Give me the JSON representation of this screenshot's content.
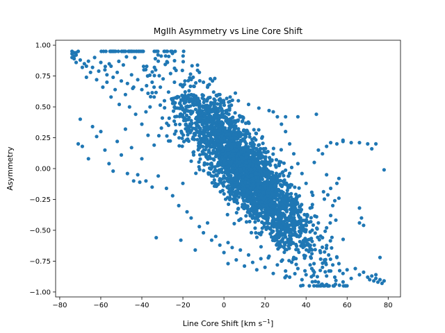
{
  "chart_data": {
    "type": "scatter",
    "title": "MgIIh Asymmetry vs Line Core Shift",
    "xlabel": "Line Core Shift [km s",
    "xlabel_sup": "−1",
    "xlabel_tail": "]",
    "ylabel": "Asymmetry",
    "xlim": [
      -82,
      86
    ],
    "ylim": [
      -1.04,
      1.04
    ],
    "xticks": [
      -80,
      -60,
      -40,
      -20,
      0,
      20,
      40,
      60,
      80
    ],
    "xtick_labels": [
      "−80",
      "−60",
      "−40",
      "−20",
      "0",
      "20",
      "40",
      "60",
      "80"
    ],
    "yticks": [
      -1.0,
      -0.75,
      -0.5,
      -0.25,
      0.0,
      0.25,
      0.5,
      0.75,
      1.0
    ],
    "ytick_labels": [
      "−1.00",
      "−0.75",
      "−0.50",
      "−0.25",
      "0.00",
      "0.25",
      "0.50",
      "0.75",
      "1.00"
    ],
    "grid": false,
    "marker_color": "#1f77b4",
    "series": [
      {
        "values": [
          {
            "x": -74,
            "y": 0.93
          },
          {
            "x": -73,
            "y": 0.94
          },
          {
            "x": -72,
            "y": 0.92
          },
          {
            "x": -73,
            "y": 0.91
          },
          {
            "x": -71,
            "y": 0.95
          },
          {
            "x": -70,
            "y": 0.88
          },
          {
            "x": -68,
            "y": 0.85
          },
          {
            "x": -67,
            "y": 0.83
          },
          {
            "x": -66,
            "y": 0.87
          },
          {
            "x": -64,
            "y": 0.82
          },
          {
            "x": -63,
            "y": 0.9
          },
          {
            "x": -61,
            "y": 0.79
          },
          {
            "x": -60,
            "y": 0.86
          },
          {
            "x": -58,
            "y": 0.8
          },
          {
            "x": -57,
            "y": 0.76
          },
          {
            "x": -55,
            "y": 0.83
          },
          {
            "x": -54,
            "y": 0.74
          },
          {
            "x": -52,
            "y": 0.78
          },
          {
            "x": -50,
            "y": 0.71
          },
          {
            "x": -49,
            "y": 0.84
          },
          {
            "x": -47,
            "y": 0.69
          },
          {
            "x": -45,
            "y": 0.76
          },
          {
            "x": -44,
            "y": 0.66
          },
          {
            "x": -42,
            "y": 0.72
          },
          {
            "x": -40,
            "y": 0.64
          },
          {
            "x": -39,
            "y": 0.8
          },
          {
            "x": -37,
            "y": 0.61
          },
          {
            "x": -35,
            "y": 0.7
          },
          {
            "x": -34,
            "y": 0.58
          },
          {
            "x": -32,
            "y": 0.87
          },
          {
            "x": -31,
            "y": 0.66
          },
          {
            "x": -29,
            "y": 0.55
          },
          {
            "x": -27,
            "y": 0.62
          },
          {
            "x": -26,
            "y": 0.77
          },
          {
            "x": -24,
            "y": 0.5
          },
          {
            "x": -22,
            "y": 0.58
          },
          {
            "x": -21,
            "y": 0.68
          },
          {
            "x": -19,
            "y": 0.71
          },
          {
            "x": -17,
            "y": 0.63
          },
          {
            "x": -15,
            "y": 0.74
          },
          {
            "x": -12,
            "y": 0.78
          },
          {
            "x": -10,
            "y": 0.7
          },
          {
            "x": -8,
            "y": 0.66
          },
          {
            "x": -5,
            "y": 0.62
          },
          {
            "x": -2,
            "y": 0.6
          },
          {
            "x": 3,
            "y": 0.58
          },
          {
            "x": 7,
            "y": 0.55
          },
          {
            "x": 12,
            "y": 0.52
          },
          {
            "x": 17,
            "y": 0.49
          },
          {
            "x": 22,
            "y": 0.47
          },
          {
            "x": 30,
            "y": 0.42
          },
          {
            "x": 45,
            "y": 0.44
          },
          {
            "x": -70,
            "y": 0.4
          },
          {
            "x": -71,
            "y": 0.2
          },
          {
            "x": -69,
            "y": 0.18
          },
          {
            "x": -66,
            "y": 0.08
          },
          {
            "x": -64,
            "y": 0.34
          },
          {
            "x": -62,
            "y": 0.26
          },
          {
            "x": -60,
            "y": 0.3
          },
          {
            "x": -58,
            "y": 0.15
          },
          {
            "x": -56,
            "y": 0.04
          },
          {
            "x": -54,
            "y": -0.02
          },
          {
            "x": -52,
            "y": 0.22
          },
          {
            "x": -50,
            "y": 0.11
          },
          {
            "x": -48,
            "y": 0.32
          },
          {
            "x": -47,
            "y": -0.04
          },
          {
            "x": -45,
            "y": 0.17
          },
          {
            "x": -44,
            "y": -0.1
          },
          {
            "x": -42,
            "y": -0.05
          },
          {
            "x": -41,
            "y": -0.11
          },
          {
            "x": -40,
            "y": 0.08
          },
          {
            "x": -38,
            "y": -0.1
          },
          {
            "x": -37,
            "y": 0.27
          },
          {
            "x": -35,
            "y": -0.15
          },
          {
            "x": -34,
            "y": 0.19
          },
          {
            "x": -33,
            "y": -0.56
          },
          {
            "x": -32,
            "y": -0.06
          },
          {
            "x": -30,
            "y": 0.41
          },
          {
            "x": -28,
            "y": -0.16
          },
          {
            "x": -27,
            "y": 0.35
          },
          {
            "x": -25,
            "y": -0.22
          },
          {
            "x": -24,
            "y": 0.28
          },
          {
            "x": -22,
            "y": -0.3
          },
          {
            "x": -21,
            "y": -0.58
          },
          {
            "x": -20,
            "y": -0.12
          },
          {
            "x": -18,
            "y": -0.35
          },
          {
            "x": -16,
            "y": -0.4
          },
          {
            "x": -14,
            "y": -0.66
          },
          {
            "x": -12,
            "y": -0.47
          },
          {
            "x": -10,
            "y": -0.52
          },
          {
            "x": -8,
            "y": -0.44
          },
          {
            "x": -6,
            "y": -0.58
          },
          {
            "x": -4,
            "y": -0.55
          },
          {
            "x": -2,
            "y": -0.62
          },
          {
            "x": 0,
            "y": -0.68
          },
          {
            "x": 2,
            "y": -0.6
          },
          {
            "x": 2,
            "y": -0.77
          },
          {
            "x": 4,
            "y": -0.64
          },
          {
            "x": 6,
            "y": -0.74
          },
          {
            "x": 8,
            "y": -0.66
          },
          {
            "x": 10,
            "y": -0.79
          },
          {
            "x": 12,
            "y": -0.7
          },
          {
            "x": 14,
            "y": -0.76
          },
          {
            "x": 16,
            "y": -0.82
          },
          {
            "x": 18,
            "y": -0.73
          },
          {
            "x": 20,
            "y": -0.8
          },
          {
            "x": 22,
            "y": -0.71
          },
          {
            "x": 24,
            "y": -0.85
          },
          {
            "x": 26,
            "y": -0.78
          },
          {
            "x": 28,
            "y": -0.75
          },
          {
            "x": 30,
            "y": -0.83
          },
          {
            "x": 32,
            "y": -0.88
          },
          {
            "x": 34,
            "y": -0.72
          },
          {
            "x": 36,
            "y": -0.81
          },
          {
            "x": 38,
            "y": -0.9
          },
          {
            "x": 40,
            "y": -0.86
          },
          {
            "x": 42,
            "y": -0.78
          },
          {
            "x": 44,
            "y": -0.84
          },
          {
            "x": 46,
            "y": -0.92
          },
          {
            "x": 48,
            "y": -0.8
          },
          {
            "x": 50,
            "y": -0.87
          },
          {
            "x": 52,
            "y": -0.83
          },
          {
            "x": 54,
            "y": -0.88
          },
          {
            "x": 56,
            "y": -0.77
          },
          {
            "x": 58,
            "y": -0.85
          },
          {
            "x": 60,
            "y": -0.82
          },
          {
            "x": 62,
            "y": -0.89
          },
          {
            "x": 64,
            "y": -0.81
          },
          {
            "x": 66,
            "y": -0.86
          },
          {
            "x": 68,
            "y": -0.84
          },
          {
            "x": 70,
            "y": -0.88
          },
          {
            "x": 71,
            "y": -0.9
          },
          {
            "x": 72,
            "y": -0.87
          },
          {
            "x": 73,
            "y": -0.91
          },
          {
            "x": 74,
            "y": -0.89
          },
          {
            "x": 75,
            "y": -0.92
          },
          {
            "x": 76,
            "y": -0.9
          },
          {
            "x": 77,
            "y": -0.93
          },
          {
            "x": 78,
            "y": -0.91
          },
          {
            "x": 74,
            "y": -0.86
          },
          {
            "x": 76,
            "y": -0.72
          },
          {
            "x": 78,
            "y": -0.01
          },
          {
            "x": 74,
            "y": 0.2
          },
          {
            "x": 72,
            "y": 0.16
          },
          {
            "x": 70,
            "y": 0.2
          },
          {
            "x": 66,
            "y": 0.21
          },
          {
            "x": 62,
            "y": 0.21
          },
          {
            "x": 58,
            "y": 0.23
          },
          {
            "x": 55,
            "y": 0.2
          },
          {
            "x": 52,
            "y": 0.21
          },
          {
            "x": 50,
            "y": 0.18
          },
          {
            "x": 48,
            "y": 0.12
          },
          {
            "x": 46,
            "y": 0.15
          },
          {
            "x": 44,
            "y": 0.05
          },
          {
            "x": 50,
            "y": -0.05
          },
          {
            "x": 52,
            "y": -0.16
          },
          {
            "x": 54,
            "y": -0.26
          },
          {
            "x": 55,
            "y": -0.12
          },
          {
            "x": 53,
            "y": -0.3
          },
          {
            "x": 56,
            "y": -0.08
          },
          {
            "x": 56,
            "y": -0.24
          },
          {
            "x": 58,
            "y": 0.22
          },
          {
            "x": 66,
            "y": -0.32
          },
          {
            "x": 66,
            "y": -0.44
          },
          {
            "x": 67,
            "y": -0.4
          },
          {
            "x": 68,
            "y": -0.46
          },
          {
            "x": 52,
            "y": -0.38
          },
          {
            "x": 50,
            "y": -0.48
          },
          {
            "x": 48,
            "y": -0.56
          },
          {
            "x": 46,
            "y": -0.44
          },
          {
            "x": 44,
            "y": -0.62
          },
          {
            "x": 43,
            "y": -0.5
          },
          {
            "x": 47,
            "y": -0.68
          },
          {
            "x": 49,
            "y": -0.74
          },
          {
            "x": 51,
            "y": -0.7
          },
          {
            "x": 53,
            "y": -0.78
          },
          {
            "x": 55,
            "y": -0.72
          },
          {
            "x": 42,
            "y": -0.32
          },
          {
            "x": 40,
            "y": -0.12
          },
          {
            "x": 38,
            "y": -0.04
          },
          {
            "x": 36,
            "y": 0.04
          },
          {
            "x": 34,
            "y": 0.12
          },
          {
            "x": 32,
            "y": 0.2
          },
          {
            "x": 30,
            "y": 0.3
          },
          {
            "x": 28,
            "y": 0.36
          },
          {
            "x": 26,
            "y": 0.42
          },
          {
            "x": 24,
            "y": 0.46
          },
          {
            "x": 36,
            "y": 0.42
          },
          {
            "x": -36,
            "y": 0.5
          },
          {
            "x": -38,
            "y": 0.46
          },
          {
            "x": -40,
            "y": 0.36
          },
          {
            "x": -43,
            "y": 0.44
          },
          {
            "x": -46,
            "y": 0.5
          },
          {
            "x": -48,
            "y": 0.6
          },
          {
            "x": -51,
            "y": 0.52
          },
          {
            "x": -53,
            "y": 0.64
          },
          {
            "x": -55,
            "y": 0.58
          },
          {
            "x": -57,
            "y": 0.7
          },
          {
            "x": -59,
            "y": 0.66
          },
          {
            "x": -62,
            "y": 0.72
          },
          {
            "x": -65,
            "y": 0.78
          },
          {
            "x": -67,
            "y": 0.74
          },
          {
            "x": -69,
            "y": 0.82
          },
          {
            "x": -72,
            "y": 0.86
          },
          {
            "x": -74,
            "y": 0.9
          },
          {
            "x": -73,
            "y": 0.89
          },
          {
            "x": -72,
            "y": 0.94
          },
          {
            "x": -74,
            "y": 0.95
          }
        ],
        "clusters": [
          {
            "x_range": [
              -22,
              42
            ],
            "center_x": 10,
            "center_y": 0.0,
            "slope": -0.0185,
            "half_width_x": 32,
            "half_spread_y": 0.34,
            "y_range": [
              -0.66,
              0.6
            ]
          }
        ]
      }
    ]
  }
}
